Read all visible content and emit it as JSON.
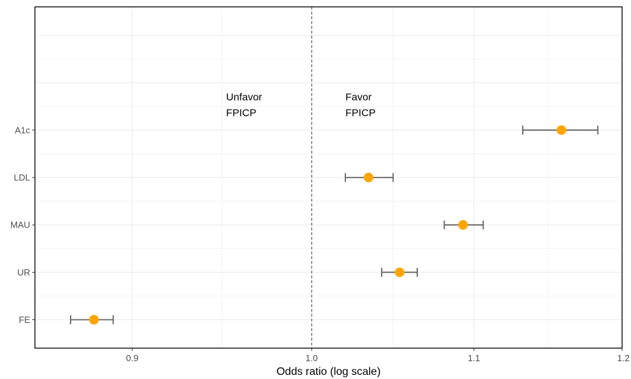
{
  "chart_data": {
    "type": "scatter",
    "subtype": "forest-plot",
    "xlabel": "Odds ratio (log scale)",
    "ylabel": "",
    "x_scale": "log",
    "xlim": [
      0.85,
      1.2
    ],
    "x_ticks": [
      0.9,
      1.0,
      1.1,
      1.2
    ],
    "x_tick_labels": [
      "0.9",
      "1.0",
      "1.1",
      "1.2"
    ],
    "reference_line": 1.0,
    "grid": true,
    "categories": [
      "A1c",
      "LDL",
      "MAU",
      "UR",
      "FE"
    ],
    "series": [
      {
        "values": [
          {
            "label": "A1c",
            "estimate": 1.158,
            "lower": 1.132,
            "upper": 1.183
          },
          {
            "label": "LDL",
            "estimate": 1.034,
            "lower": 1.02,
            "upper": 1.049
          },
          {
            "label": "MAU",
            "estimate": 1.093,
            "lower": 1.081,
            "upper": 1.106
          },
          {
            "label": "UR",
            "estimate": 1.053,
            "lower": 1.042,
            "upper": 1.064
          },
          {
            "label": "FE",
            "estimate": 0.88,
            "lower": 0.868,
            "upper": 0.89
          }
        ]
      }
    ],
    "annotations": [
      {
        "lines": [
          "Unfavor",
          "FPICP"
        ],
        "x": 0.951
      },
      {
        "lines": [
          "Favor",
          "FPICP"
        ],
        "x": 1.02
      }
    ],
    "colors": {
      "point": "#FFA500",
      "errorbar": "#666666",
      "grid": "#EBEBEB",
      "reference_line": "#666666"
    }
  }
}
